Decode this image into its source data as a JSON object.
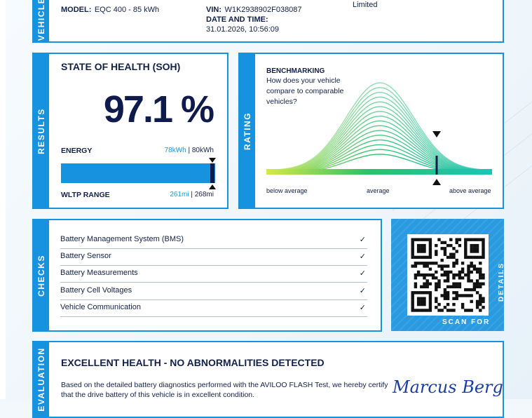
{
  "vehicle": {
    "tab": "VEHICLE",
    "model_label": "MODEL:",
    "model_value": "EQC 400 - 85 kWh",
    "vin_label": "VIN:",
    "vin_value": "W1K2938902F038087",
    "datetime_label": "DATE AND TIME:",
    "datetime_value": "31.01.2026, 10:56:09",
    "extra_value": "Limited"
  },
  "results": {
    "tab": "RESULTS",
    "title": "STATE OF HEALTH (SOH)",
    "soh_value": "97.1 %",
    "soh_fraction": 0.971,
    "energy_label": "ENERGY",
    "energy_current": "78kWh",
    "energy_total": "80kWh",
    "separator": " | ",
    "range_label": "WLTP RANGE",
    "range_current": "261mi",
    "range_total": "268mi"
  },
  "rating": {
    "tab": "RATING",
    "title": "BENCHMARKING",
    "question": "How does your vehicle compare to comparable vehicles?",
    "below": "below average",
    "average": "average",
    "above": "above average",
    "marker_position": 0.8
  },
  "checks": {
    "tab": "CHECKS",
    "check_glyph": "✓",
    "items": [
      "Battery Management System (BMS)",
      "Battery Sensor",
      "Battery Measurements",
      "Battery Cell Voltages",
      "Vehicle Communication"
    ]
  },
  "qr": {
    "scan": "SCAN FOR",
    "details": "DETAILS"
  },
  "evaluation": {
    "tab": "EVALUATION",
    "title": "EXCELLENT HEALTH - NO ABNORMALITIES DETECTED",
    "text": "Based on the detailed battery diagnostics performed with the AVILOO FLASH Test, we hereby certify that the drive battery of this vehicle is in excellent condition.",
    "signature": "Marcus Berger"
  },
  "colors": {
    "accent": "#1792de",
    "navy": "#13204a",
    "curve_start": "#d7e84a",
    "curve_mid": "#2fbf6a",
    "curve_end": "#1cc4b8"
  }
}
